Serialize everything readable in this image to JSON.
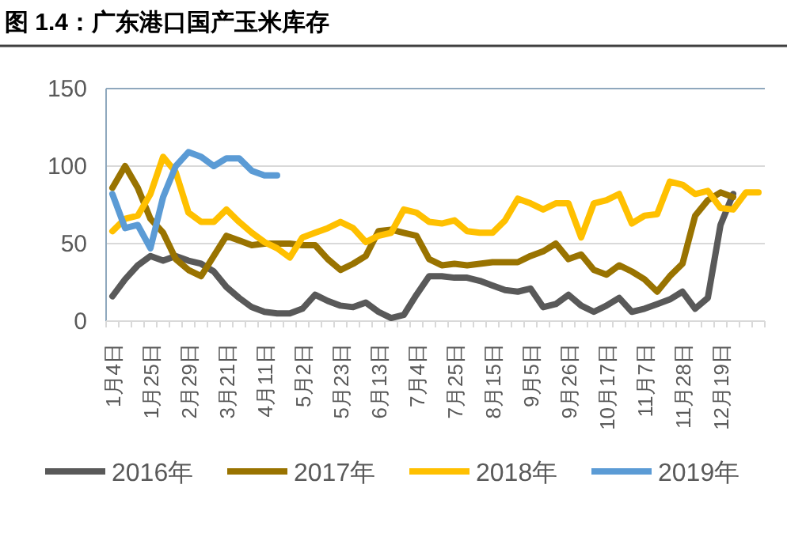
{
  "chart_data": {
    "type": "line",
    "title": "图 1.4：广东港口国产玉米库存",
    "categories": [
      "1月4日",
      null,
      null,
      "1月25日",
      null,
      null,
      "2月29日",
      null,
      null,
      "3月21日",
      null,
      null,
      "4月11日",
      null,
      null,
      "5月2日",
      null,
      null,
      "5月23日",
      null,
      null,
      "6月13日",
      null,
      null,
      "7月4日",
      null,
      null,
      "7月25日",
      null,
      null,
      "8月15日",
      null,
      null,
      "9月5日",
      null,
      null,
      "9月26日",
      null,
      null,
      "10月17日",
      null,
      null,
      "11月7日",
      null,
      null,
      "11月28日",
      null,
      null,
      "12月19日",
      null,
      null,
      null
    ],
    "series": [
      {
        "name": "2016年",
        "color": "#595959",
        "values": [
          16,
          27,
          36,
          42,
          39,
          42,
          39,
          37,
          32,
          22,
          15,
          9,
          6,
          5,
          5,
          8,
          17,
          13,
          10,
          9,
          12,
          6,
          2,
          4,
          17,
          29,
          29,
          28,
          28,
          26,
          23,
          20,
          19,
          21,
          9,
          11,
          17,
          10,
          6,
          10,
          15,
          6,
          8,
          11,
          14,
          19,
          8,
          15,
          62,
          82,
          null,
          null
        ]
      },
      {
        "name": "2017年",
        "color": "#997300",
        "values": [
          86,
          100,
          86,
          66,
          57,
          40,
          33,
          29,
          42,
          55,
          52,
          49,
          50,
          50,
          50,
          49,
          49,
          40,
          33,
          37,
          42,
          58,
          59,
          57,
          55,
          40,
          36,
          37,
          36,
          37,
          38,
          38,
          38,
          42,
          45,
          50,
          40,
          43,
          33,
          30,
          36,
          32,
          27,
          19,
          29,
          37,
          68,
          78,
          83,
          80,
          null,
          null
        ]
      },
      {
        "name": "2018年",
        "color": "#ffc000",
        "values": [
          58,
          66,
          68,
          82,
          106,
          96,
          70,
          64,
          64,
          72,
          64,
          57,
          51,
          47,
          41,
          54,
          57,
          60,
          64,
          60,
          51,
          55,
          57,
          72,
          70,
          64,
          63,
          65,
          58,
          57,
          57,
          65,
          79,
          76,
          72,
          76,
          76,
          54,
          76,
          78,
          82,
          63,
          68,
          69,
          90,
          88,
          82,
          84,
          73,
          72,
          83,
          83
        ]
      },
      {
        "name": "2019年",
        "color": "#5b9bd5",
        "values": [
          82,
          60,
          62,
          47,
          80,
          100,
          109,
          106,
          100,
          105,
          105,
          97,
          94,
          94,
          null,
          null,
          null,
          null,
          null,
          null,
          null,
          null,
          null,
          null,
          null,
          null,
          null,
          null,
          null,
          null,
          null,
          null,
          null,
          null,
          null,
          null,
          null,
          null,
          null,
          null,
          null,
          null,
          null,
          null,
          null,
          null,
          null,
          null,
          null,
          null,
          null,
          null
        ]
      }
    ],
    "ylim": [
      0,
      150
    ],
    "yticks": [
      0,
      50,
      100,
      150
    ],
    "grid": "y",
    "legend": "bottom"
  }
}
